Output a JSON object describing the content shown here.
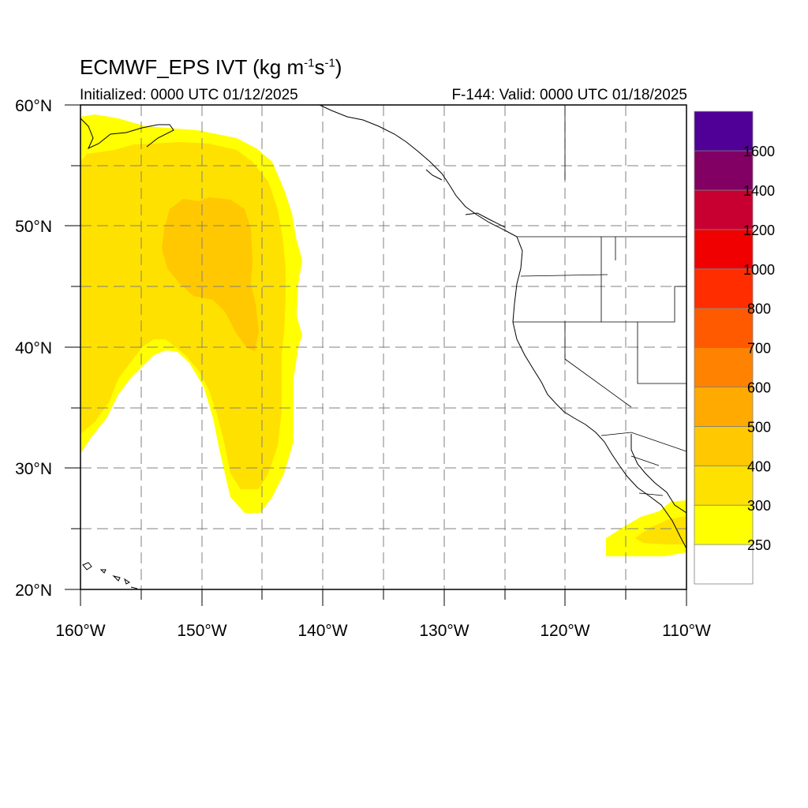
{
  "title": {
    "main": "ECMWF_EPS IVT (kg m",
    "exp1": "-1",
    "mid": "s",
    "exp2": "-1",
    "end": ")"
  },
  "subtitle_left": "Initialized: 0000 UTC 01/12/2025",
  "subtitle_right": "F-144: Valid: 0000 UTC 01/18/2025",
  "axes": {
    "lon_ticks": [
      "160°W",
      "150°W",
      "140°W",
      "130°W",
      "120°W",
      "110°W"
    ],
    "lat_ticks": [
      "20°N",
      "30°N",
      "40°N",
      "50°N",
      "60°N"
    ],
    "lon_range": [
      -160,
      -110
    ],
    "lat_range": [
      20,
      60
    ]
  },
  "colorbar": {
    "labels": [
      "250",
      "300",
      "400",
      "500",
      "600",
      "700",
      "800",
      "1000",
      "1200",
      "1400",
      "1600"
    ],
    "colors": [
      "#ffffff",
      "#ffff00",
      "#ffe100",
      "#ffc800",
      "#ffaa00",
      "#ff8200",
      "#ff5a00",
      "#ff2d00",
      "#f00000",
      "#c80032",
      "#820064",
      "#500096"
    ]
  },
  "colors": {
    "ivt_250": "#ffff00",
    "ivt_300": "#ffe100",
    "ivt_400": "#ffc800",
    "coast": "#000000",
    "grid": "#808080"
  }
}
